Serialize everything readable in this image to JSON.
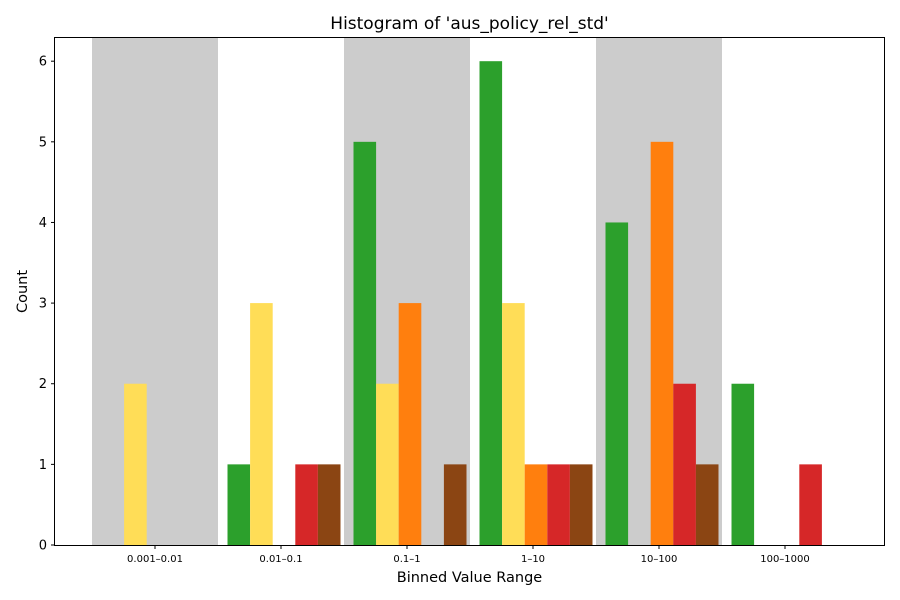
{
  "chart_data": {
    "type": "bar",
    "title": "Histogram of 'aus_policy_rel_std'",
    "xlabel": "Binned Value Range",
    "ylabel": "Count",
    "categories": [
      "0.001–0.01",
      "0.01–0.1",
      "0.1–1",
      "1–10",
      "10–100",
      "100–1000"
    ],
    "ylim": [
      0,
      6.3
    ],
    "yticks": [
      0,
      1,
      2,
      3,
      4,
      5,
      6
    ],
    "grid": false,
    "legend": "none",
    "shaded_bands": [
      0,
      2,
      4
    ],
    "band_color": "#cccccc",
    "series": [
      {
        "color": "#2ca02c",
        "values": [
          0,
          1,
          5,
          6,
          4,
          2
        ]
      },
      {
        "color": "#ffdd57",
        "values": [
          2,
          3,
          2,
          3,
          0,
          0
        ]
      },
      {
        "color": "#ff7f0e",
        "values": [
          0,
          0,
          3,
          1,
          5,
          0
        ]
      },
      {
        "color": "#d62728",
        "values": [
          0,
          1,
          0,
          1,
          2,
          1
        ]
      },
      {
        "color": "#8b4513",
        "values": [
          0,
          1,
          1,
          1,
          1,
          0
        ]
      }
    ]
  }
}
